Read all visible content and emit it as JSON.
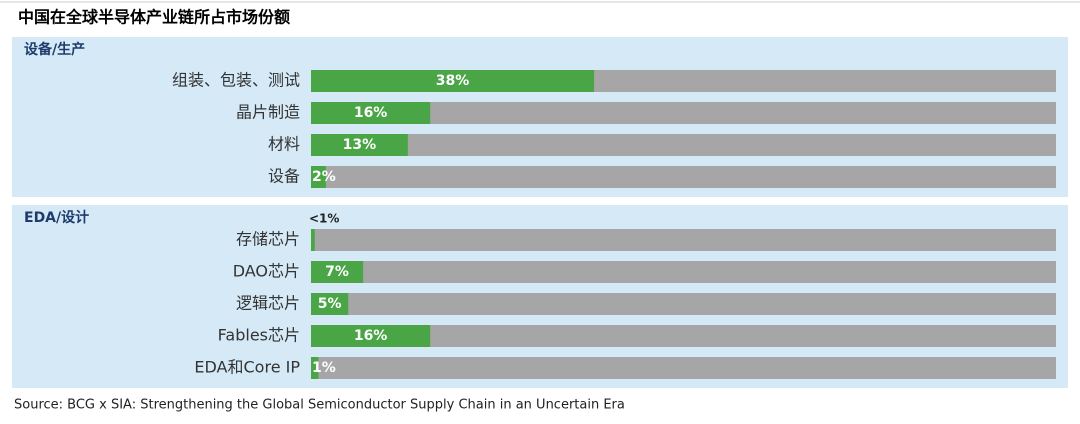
{
  "title": "中国在全球半导体产业链所占市场份额",
  "source": "Source: BCG x SIA: Strengthening the Global Semiconductor Supply Chain in an Uncertain Era",
  "chart_data": [
    {
      "type": "bar",
      "orientation": "horizontal",
      "title": "设备/生产",
      "categories": [
        "组装、包装、测试",
        "晶片制造",
        "材料",
        "设备"
      ],
      "values": [
        38,
        16,
        13,
        2
      ],
      "value_labels": [
        "38%",
        "16%",
        "13%",
        "2%"
      ],
      "color": "#4aa546",
      "track_color": "#a6a6a6",
      "background": "#d5eaf6",
      "xlim": [
        0,
        100
      ]
    },
    {
      "type": "bar",
      "orientation": "horizontal",
      "title": "EDA/设计",
      "categories": [
        "存储芯片",
        "DAO芯片",
        "逻辑芯片",
        "Fables芯片",
        "EDA和Core IP"
      ],
      "values": [
        0.5,
        7,
        5,
        16,
        1
      ],
      "value_labels": [
        "<1%",
        "7%",
        "5%",
        "16%",
        "1%"
      ],
      "color": "#4aa546",
      "track_color": "#a6a6a6",
      "background": "#d5eaf6",
      "xlim": [
        0,
        100
      ]
    }
  ]
}
